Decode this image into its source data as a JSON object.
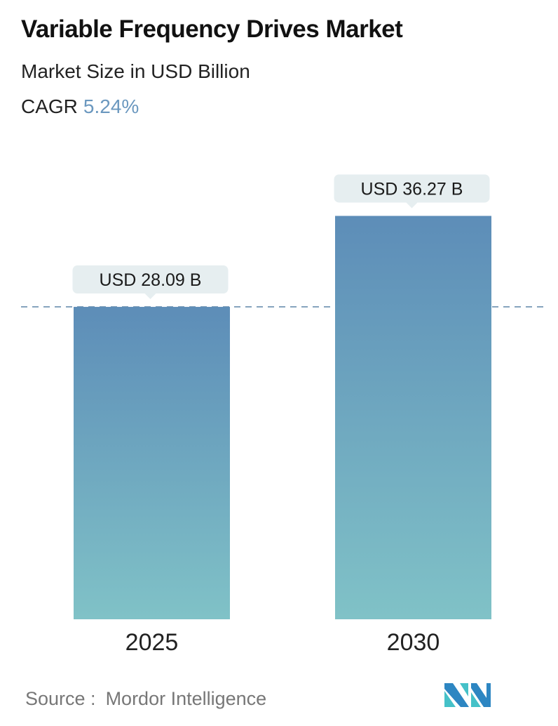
{
  "header": {
    "title": "Variable Frequency Drives Market",
    "subtitle": "Market Size in USD Billion",
    "cagr_label": "CAGR",
    "cagr_value": "5.24%"
  },
  "chart_data": {
    "type": "bar",
    "title": "Variable Frequency Drives Market",
    "subtitle": "Market Size in USD Billion",
    "categories": [
      "2025",
      "2030"
    ],
    "values": [
      28.09,
      36.27
    ],
    "data_labels": [
      "USD 28.09 B",
      "USD 36.27 B"
    ],
    "reference_line": 28.09,
    "ylim": [
      0,
      40
    ],
    "grid": false,
    "colors": {
      "bar_top": "#5d8db8",
      "bar_bottom": "#80c2c7",
      "dash": "#5f86a8",
      "callout": "#e6eef0",
      "accent": "#6b98bf"
    }
  },
  "footer": {
    "source_label": "Source :",
    "source_name": "Mordor Intelligence",
    "logo_text": "Mordor Intelligence"
  }
}
